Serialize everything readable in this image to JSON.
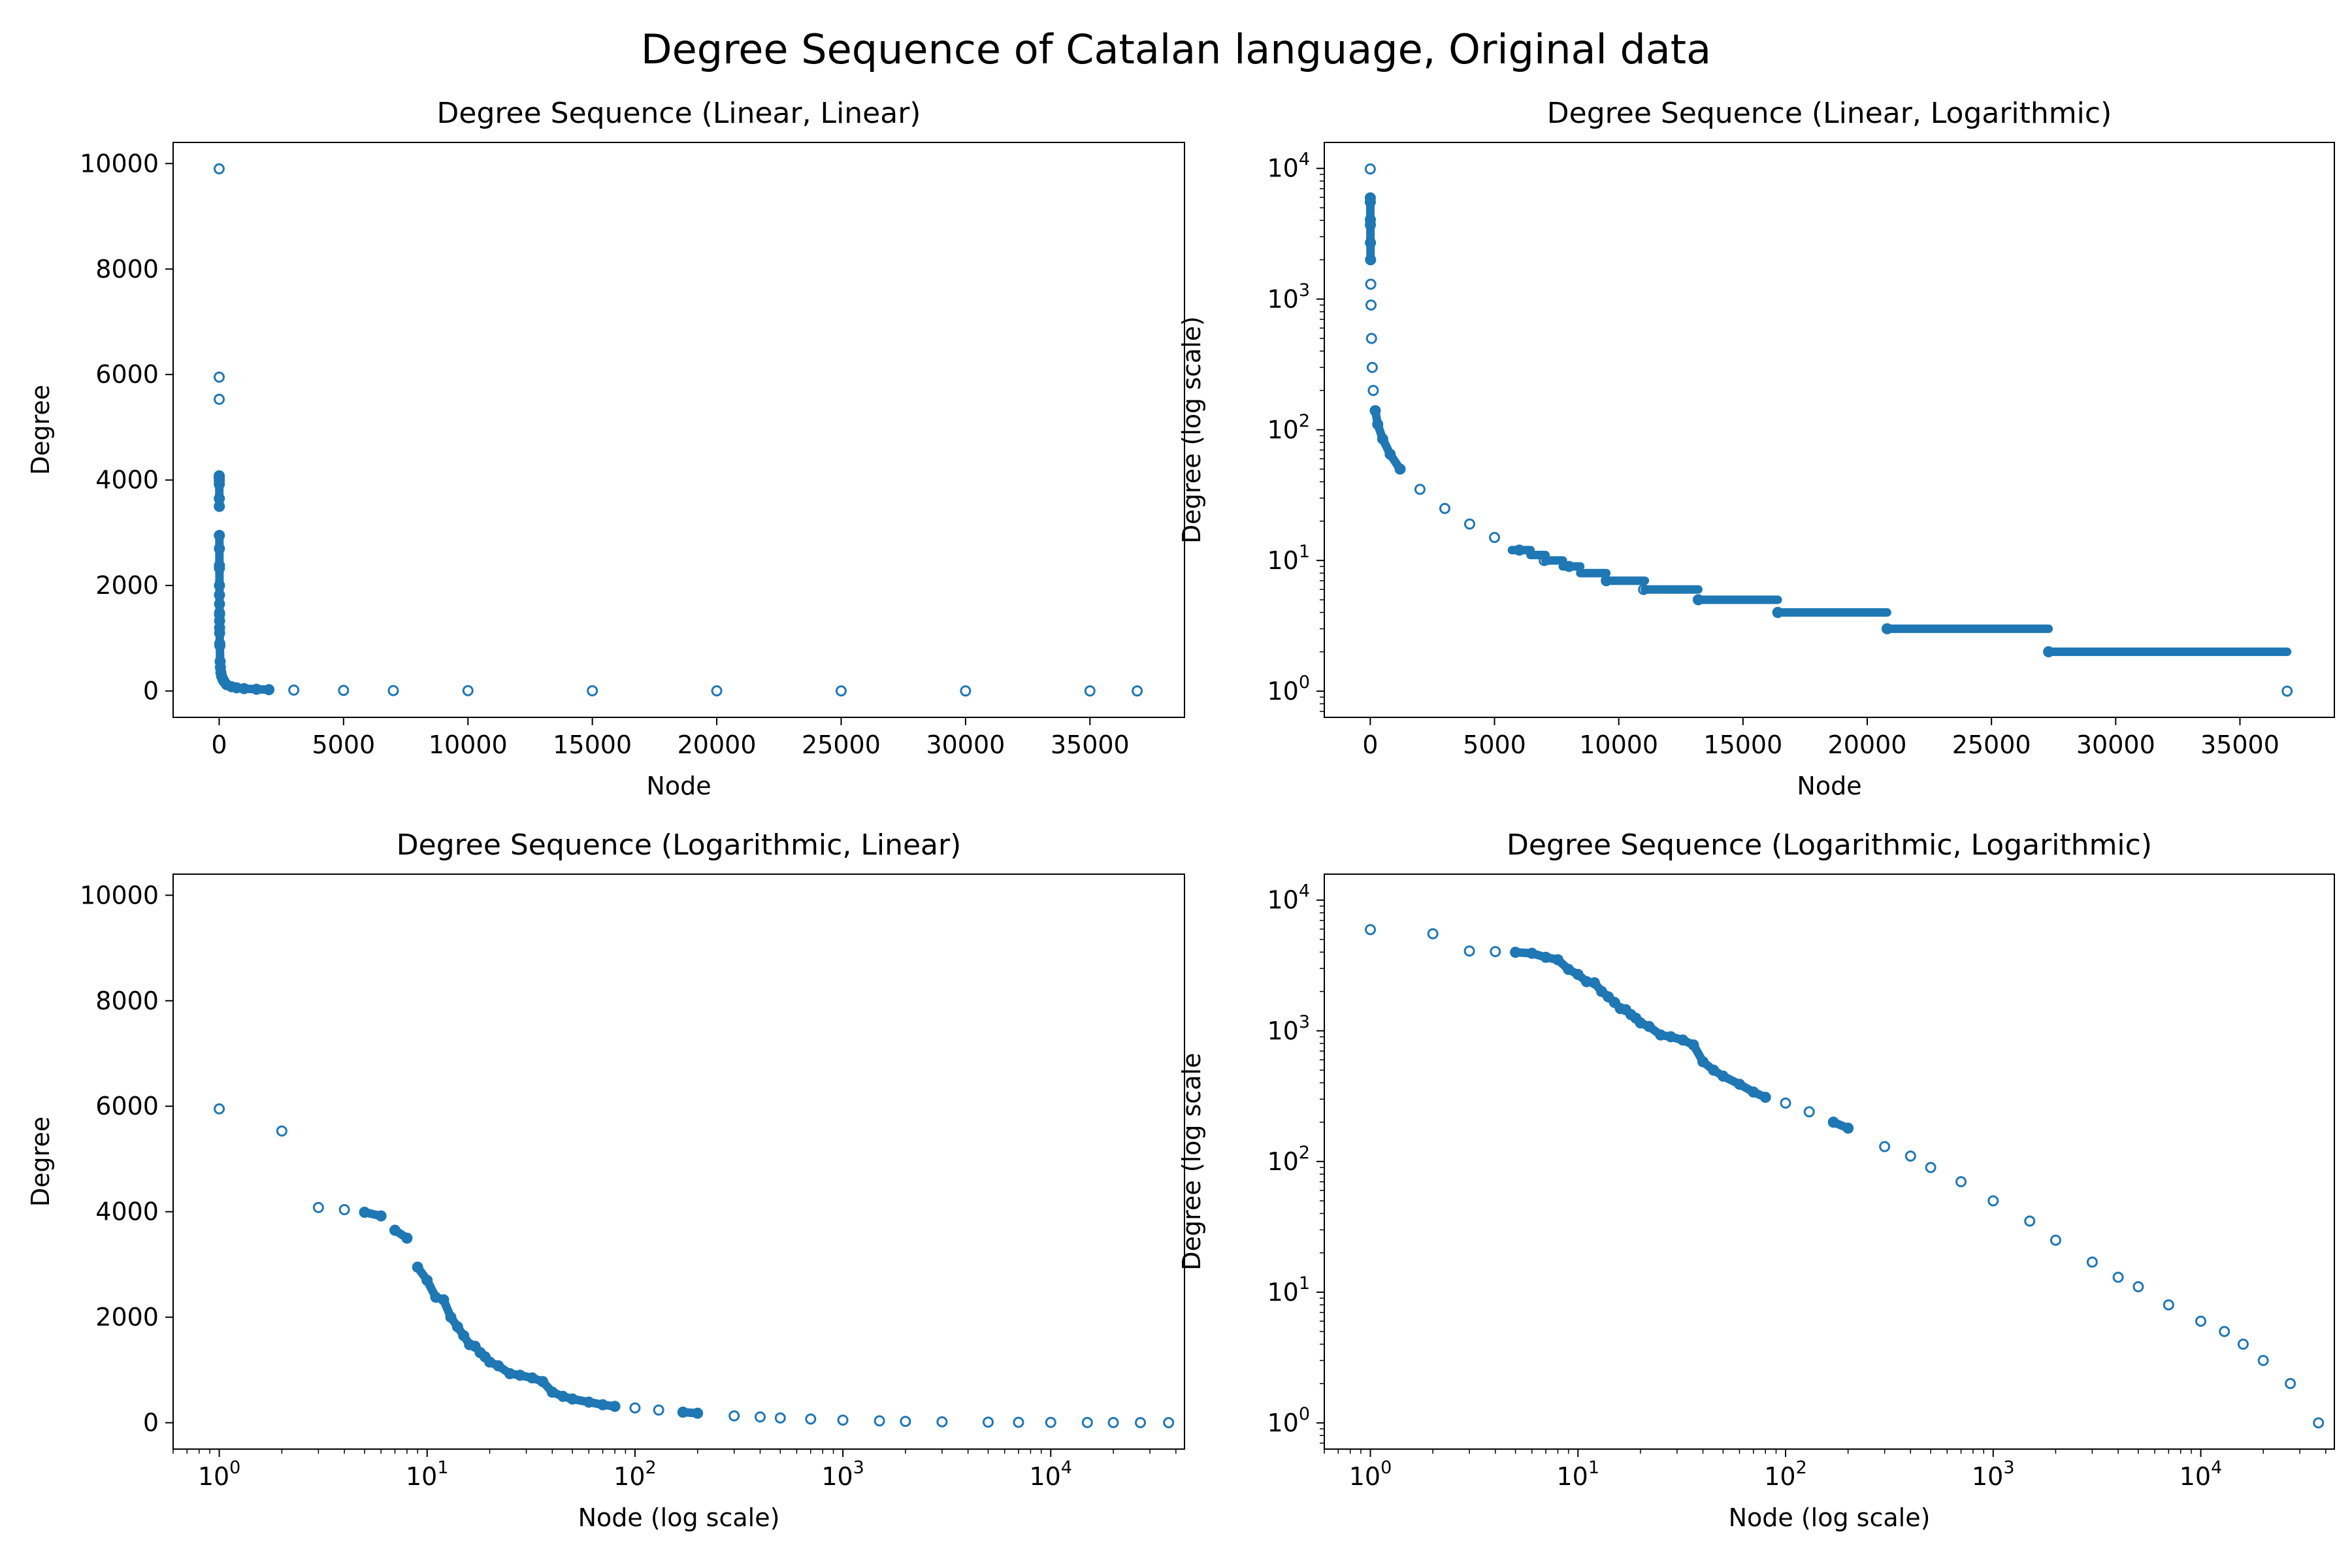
{
  "figure": {
    "title": "Degree Sequence of Catalan language, Original data",
    "marker_color": "#1f77b4"
  },
  "chart_data": [
    {
      "type": "scatter",
      "title": "Degree Sequence (Linear, Linear)",
      "xlabel": "Node",
      "ylabel": "Degree",
      "xscale": "linear",
      "yscale": "linear",
      "xlim": [
        -1850,
        38800
      ],
      "ylim": [
        -500,
        10400
      ],
      "xticks": [
        0,
        5000,
        10000,
        15000,
        20000,
        25000,
        30000,
        35000
      ],
      "xticklabels": [
        "0",
        "5000",
        "10000",
        "15000",
        "20000",
        "25000",
        "30000",
        "35000"
      ],
      "yticks": [
        0,
        2000,
        4000,
        6000,
        8000,
        10000
      ],
      "yticklabels": [
        "0",
        "2000",
        "4000",
        "6000",
        "8000",
        "10000"
      ],
      "grid": false,
      "series": [
        {
          "x": [
            0,
            1,
            2,
            3,
            4,
            5,
            6,
            7,
            8,
            9,
            10,
            11,
            12,
            13,
            14,
            15,
            16,
            17,
            18,
            19,
            20,
            25,
            30,
            40,
            50,
            70,
            100,
            150,
            200,
            300,
            500,
            700,
            1000,
            1500,
            2000,
            3000,
            5000,
            7000,
            10000,
            15000,
            20000,
            25000,
            30000,
            35000,
            36900
          ],
          "y": [
            9900,
            5950,
            5530,
            4080,
            4040,
            3990,
            3920,
            3650,
            3500,
            2950,
            2700,
            2380,
            2330,
            2000,
            1820,
            1650,
            1480,
            1450,
            1330,
            1200,
            1100,
            900,
            860,
            560,
            450,
            350,
            280,
            220,
            180,
            120,
            80,
            60,
            45,
            32,
            25,
            17,
            11,
            8,
            6,
            4,
            3,
            2,
            1,
            1,
            1
          ]
        }
      ]
    },
    {
      "type": "scatter",
      "title": "Degree Sequence (Linear, Logarithmic)",
      "xlabel": "Node",
      "ylabel": "Degree (log scale)",
      "xscale": "linear",
      "yscale": "log",
      "xlim": [
        -1850,
        38800
      ],
      "ylim": [
        0.63,
        15800
      ],
      "xticks": [
        0,
        5000,
        10000,
        15000,
        20000,
        25000,
        30000,
        35000
      ],
      "xticklabels": [
        "0",
        "5000",
        "10000",
        "15000",
        "20000",
        "25000",
        "30000",
        "35000"
      ],
      "yticks": [
        1,
        10,
        100,
        1000,
        10000
      ],
      "ytickexps": [
        "0",
        "1",
        "2",
        "3",
        "4"
      ],
      "grid": false,
      "series": [
        {
          "x": [
            0,
            1,
            2,
            3,
            5,
            8,
            12,
            20,
            30,
            50,
            80,
            120,
            200,
            300,
            500,
            800,
            1200,
            2000,
            3000,
            4000,
            5000,
            6000,
            7000,
            8000,
            9500,
            11000,
            13200,
            16400,
            20800,
            27300,
            36900
          ],
          "y": [
            9900,
            5950,
            5530,
            4050,
            3700,
            2700,
            2000,
            1300,
            900,
            500,
            300,
            200,
            140,
            110,
            85,
            65,
            50,
            35,
            25,
            19,
            15,
            12,
            10,
            9,
            7,
            6,
            5,
            4,
            3,
            2,
            1
          ],
          "steps": [
            {
              "value": 12,
              "x0": 5700,
              "x1": 6450
            },
            {
              "value": 11,
              "x0": 6450,
              "x1": 7050
            },
            {
              "value": 10,
              "x0": 7050,
              "x1": 7750
            },
            {
              "value": 9,
              "x0": 7750,
              "x1": 8450
            },
            {
              "value": 8,
              "x0": 8450,
              "x1": 9500
            },
            {
              "value": 7,
              "x0": 9500,
              "x1": 11050
            },
            {
              "value": 6,
              "x0": 11050,
              "x1": 13200
            },
            {
              "value": 5,
              "x0": 13200,
              "x1": 16400
            },
            {
              "value": 4,
              "x0": 16400,
              "x1": 20800
            },
            {
              "value": 3,
              "x0": 20800,
              "x1": 27300
            },
            {
              "value": 2,
              "x0": 27300,
              "x1": 36900
            }
          ]
        }
      ]
    },
    {
      "type": "scatter",
      "title": "Degree Sequence (Logarithmic, Linear)",
      "xlabel": "Node (log scale)",
      "ylabel": "Degree",
      "xscale": "log",
      "yscale": "linear",
      "xlim": [
        0.6,
        44000
      ],
      "ylim": [
        -500,
        10400
      ],
      "xticks": [
        1,
        10,
        100,
        1000,
        10000
      ],
      "xtickexps": [
        "0",
        "1",
        "2",
        "3",
        "4"
      ],
      "yticks": [
        0,
        2000,
        4000,
        6000,
        8000,
        10000
      ],
      "yticklabels": [
        "0",
        "2000",
        "4000",
        "6000",
        "8000",
        "10000"
      ],
      "grid": false,
      "series": [
        {
          "x": [
            1,
            2,
            3,
            4,
            5,
            6,
            7,
            8,
            9,
            10,
            11,
            12,
            13,
            14,
            15,
            16,
            17,
            18,
            19,
            20,
            22,
            25,
            28,
            32,
            36,
            40,
            45,
            50,
            60,
            70,
            80,
            100,
            130,
            170,
            200,
            300,
            400,
            500,
            700,
            1000,
            1500,
            2000,
            3000,
            5000,
            7000,
            10000,
            15000,
            20000,
            27000,
            36900
          ],
          "y": [
            5950,
            5530,
            4080,
            4040,
            3990,
            3920,
            3650,
            3500,
            2950,
            2700,
            2380,
            2330,
            2000,
            1820,
            1650,
            1480,
            1450,
            1330,
            1250,
            1150,
            1080,
            930,
            900,
            850,
            780,
            580,
            500,
            450,
            390,
            340,
            310,
            280,
            240,
            200,
            180,
            130,
            110,
            90,
            70,
            50,
            35,
            25,
            17,
            11,
            8,
            6,
            4,
            3,
            2,
            1
          ]
        }
      ]
    },
    {
      "type": "scatter",
      "title": "Degree Sequence (Logarithmic, Logarithmic)",
      "xlabel": "Node (log scale)",
      "ylabel": "Degree (log scale",
      "xscale": "log",
      "yscale": "log",
      "xlim": [
        0.6,
        44000
      ],
      "ylim": [
        0.63,
        15800
      ],
      "xticks": [
        1,
        10,
        100,
        1000,
        10000
      ],
      "xtickexps": [
        "0",
        "1",
        "2",
        "3",
        "4"
      ],
      "yticks": [
        1,
        10,
        100,
        1000,
        10000
      ],
      "ytickexps": [
        "0",
        "1",
        "2",
        "3",
        "4"
      ],
      "grid": false,
      "series": [
        {
          "x": [
            1,
            2,
            3,
            4,
            5,
            6,
            7,
            8,
            9,
            10,
            11,
            12,
            13,
            14,
            15,
            16,
            17,
            18,
            19,
            20,
            22,
            25,
            28,
            32,
            36,
            40,
            45,
            50,
            60,
            70,
            80,
            100,
            130,
            170,
            200,
            300,
            400,
            500,
            700,
            1000,
            1500,
            2000,
            3000,
            4000,
            5000,
            7000,
            10000,
            13000,
            16000,
            20000,
            27000,
            36900
          ],
          "y": [
            5950,
            5530,
            4080,
            4040,
            3990,
            3920,
            3650,
            3500,
            2950,
            2700,
            2380,
            2330,
            2000,
            1820,
            1650,
            1480,
            1450,
            1330,
            1250,
            1150,
            1080,
            930,
            900,
            850,
            780,
            580,
            500,
            450,
            390,
            340,
            310,
            280,
            240,
            200,
            180,
            130,
            110,
            90,
            70,
            50,
            35,
            25,
            17,
            13,
            11,
            8,
            6,
            5,
            4,
            3,
            2,
            1
          ]
        }
      ]
    }
  ]
}
